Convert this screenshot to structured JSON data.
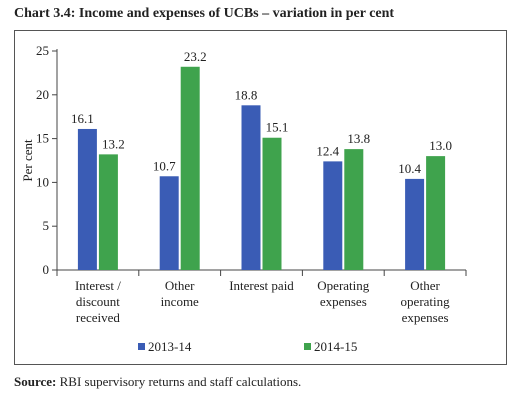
{
  "title": "Chart 3.4: Income and expenses of UCBs – variation in per cent",
  "source_label": "Source:",
  "source_text": " RBI supervisory returns and staff calculations.",
  "chart_data": {
    "type": "bar",
    "title": "Chart 3.4: Income and expenses of UCBs – variation in per cent",
    "xlabel": "",
    "ylabel": "Per cent",
    "ylim": [
      0,
      25
    ],
    "yticks": [
      0,
      5,
      10,
      15,
      20,
      25
    ],
    "grid": false,
    "legend_position": "bottom",
    "categories": [
      [
        "Interest /",
        "discount",
        "received"
      ],
      [
        "Other",
        "income"
      ],
      [
        "Interest paid"
      ],
      [
        "Operating",
        "expenses"
      ],
      [
        "Other",
        "operating",
        "expenses"
      ]
    ],
    "series": [
      {
        "name": "2013-14",
        "color": "#3a5cb5",
        "values": [
          16.1,
          10.7,
          18.8,
          12.4,
          10.4
        ],
        "labels": [
          "16.1",
          "10.7",
          "18.8",
          "12.4",
          "10.4"
        ]
      },
      {
        "name": "2014-15",
        "color": "#3fa34d",
        "values": [
          13.2,
          23.2,
          15.1,
          13.8,
          13.0
        ],
        "labels": [
          "13.2",
          "23.2",
          "15.1",
          "13.8",
          "13.0"
        ]
      }
    ]
  }
}
